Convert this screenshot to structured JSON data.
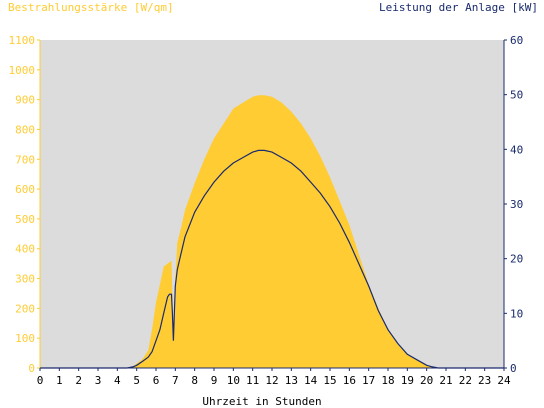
{
  "chart_data": {
    "type": "area",
    "left_axis_title": "Bestrahlungsstärke [W/qm]",
    "right_axis_title": "Leistung der Anlage [kW]",
    "xlabel": "Uhrzeit in Stunden",
    "xlim": [
      0,
      24
    ],
    "ylim_left": [
      0,
      1100
    ],
    "ylim_right": [
      0,
      60
    ],
    "x_ticks": [
      "0",
      "1",
      "2",
      "3",
      "4",
      "5",
      "6",
      "7",
      "8",
      "9",
      "10",
      "11",
      "12",
      "13",
      "14",
      "15",
      "16",
      "17",
      "18",
      "19",
      "20",
      "21",
      "22",
      "23",
      "24"
    ],
    "y_ticks_left": [
      "0",
      "100",
      "200",
      "300",
      "400",
      "500",
      "600",
      "700",
      "800",
      "900",
      "1000",
      "1100"
    ],
    "y_ticks_right": [
      "0",
      "10",
      "20",
      "30",
      "40",
      "50",
      "60"
    ],
    "grid": false,
    "colors": {
      "irradiance_fill": "#ffcc33",
      "power_line": "#1a2b6e",
      "plot_background": "#dcdcdc",
      "left_axis": "#ffcc33",
      "right_axis": "#1a2b6e"
    },
    "series": [
      {
        "axis": "left",
        "x": [
          0,
          4.5,
          4.8,
          5.0,
          5.3,
          5.6,
          5.8,
          6.0,
          6.2,
          6.4,
          6.6,
          6.8,
          6.9,
          7.0,
          7.1,
          7.3,
          7.5,
          8.0,
          8.5,
          9.0,
          9.5,
          10.0,
          10.5,
          11.0,
          11.3,
          11.6,
          12.0,
          12.5,
          13.0,
          13.5,
          14.0,
          14.5,
          15.0,
          15.5,
          16.0,
          16.5,
          17.0,
          17.5,
          18.0,
          18.5,
          19.0,
          19.5,
          20.0,
          20.3,
          20.6,
          21.0,
          24.0
        ],
        "y": [
          0,
          0,
          5,
          15,
          30,
          60,
          130,
          220,
          280,
          340,
          350,
          360,
          100,
          300,
          420,
          470,
          530,
          620,
          700,
          770,
          820,
          870,
          890,
          910,
          915,
          915,
          910,
          890,
          860,
          820,
          770,
          710,
          640,
          560,
          480,
          380,
          280,
          200,
          130,
          80,
          45,
          25,
          10,
          5,
          0,
          0,
          0
        ]
      },
      {
        "axis": "right",
        "x": [
          0,
          4.5,
          4.8,
          5.0,
          5.3,
          5.6,
          5.8,
          6.0,
          6.2,
          6.4,
          6.6,
          6.7,
          6.8,
          6.85,
          6.9,
          7.0,
          7.1,
          7.3,
          7.5,
          8.0,
          8.5,
          9.0,
          9.5,
          10.0,
          10.5,
          11.0,
          11.3,
          11.6,
          12.0,
          12.5,
          13.0,
          13.5,
          14.0,
          14.5,
          15.0,
          15.5,
          16.0,
          16.5,
          17.0,
          17.5,
          18.0,
          18.5,
          19.0,
          19.5,
          20.0,
          20.3,
          20.6,
          21.0,
          24.0
        ],
        "y": [
          0,
          0,
          0.2,
          0.5,
          1.2,
          2,
          3,
          5,
          7,
          10,
          13,
          13.5,
          13.5,
          10,
          5,
          15,
          18,
          21,
          24,
          28.5,
          31.5,
          34,
          36,
          37.5,
          38.5,
          39.5,
          39.8,
          39.8,
          39.5,
          38.5,
          37.5,
          36,
          34,
          32,
          29.5,
          26.5,
          23,
          19,
          15,
          10.5,
          7,
          4.5,
          2.5,
          1.5,
          0.5,
          0.2,
          0,
          0,
          0
        ]
      }
    ]
  }
}
